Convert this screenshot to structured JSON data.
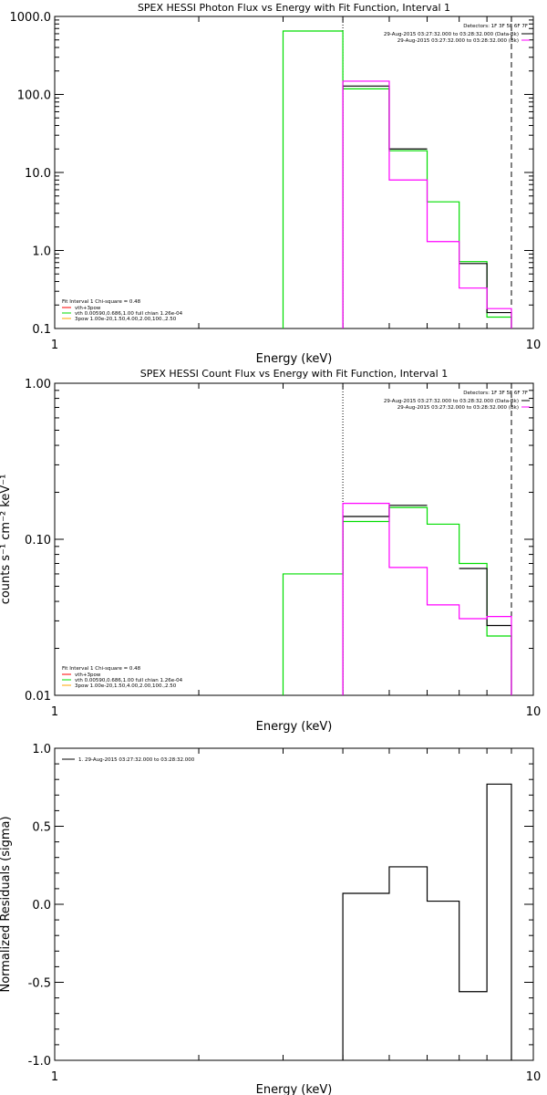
{
  "chart_data": [
    {
      "type": "line",
      "title": "SPEX HESSI Photon Flux vs Energy with Fit Function, Interval 1",
      "xlabel": "Energy (keV)",
      "ylabel": "",
      "xscale": "log",
      "yscale": "log",
      "xlim": [
        1,
        10
      ],
      "ylim": [
        0.1,
        1000
      ],
      "x_ticks": [
        {
          "v": 1,
          "label": "1"
        },
        {
          "v": 10,
          "label": "10"
        }
      ],
      "y_ticks": [
        {
          "v": 1000,
          "label": "1000.0"
        },
        {
          "v": 100,
          "label": "100.0"
        },
        {
          "v": 10,
          "label": "10.0"
        },
        {
          "v": 1,
          "label": "1.0"
        },
        {
          "v": 0.1,
          "label": "0.1"
        }
      ],
      "vlines": [
        {
          "x": 4.0,
          "style": "dotted"
        },
        {
          "x": 9.0,
          "style": "dashed"
        }
      ],
      "legend_right": {
        "header": "Detectors: 1F 3F 5F 6F 7F",
        "entries": [
          {
            "label": "29-Aug-2015 03:27:32.000 to 03:28:32.000 (Data-Bk)",
            "color": "#000000"
          },
          {
            "label": "29-Aug-2015 03:27:32.000 to 03:28:32.000 (Bk)",
            "color": "#ff00ff"
          }
        ]
      },
      "legend_left": {
        "header": "Fit Interval 1   Chi-square = 0.48",
        "entries": [
          {
            "label": "vth+3pow",
            "color": "#ff0000"
          },
          {
            "label": "vth 0.00590,0.686,1.00  full chian 1.26e-04",
            "color": "#00dd00"
          },
          {
            "label": "3pow 1.00e-20,1.50,4.00,2.00,100.,2.50",
            "color": "#ffa500"
          }
        ]
      },
      "series": [
        {
          "color": "#00dd00",
          "bins": [
            [
              3.0,
              4.0,
              650
            ],
            [
              4.0,
              5.0,
              118
            ],
            [
              5.0,
              6.0,
              19
            ],
            [
              6.0,
              7.0,
              4.2
            ],
            [
              7.0,
              8.0,
              0.72
            ],
            [
              8.0,
              9.0,
              0.14
            ]
          ]
        },
        {
          "color": "#000000",
          "bins": [
            [
              4.0,
              5.0,
              128
            ],
            [
              5.0,
              6.0,
              20
            ],
            [
              6.0,
              7.0,
              0
            ],
            [
              7.0,
              8.0,
              0.68
            ],
            [
              8.0,
              9.0,
              0.16
            ]
          ]
        },
        {
          "color": "#ff00ff",
          "bins": [
            [
              4.0,
              5.0,
              148
            ],
            [
              5.0,
              6.0,
              8
            ],
            [
              6.0,
              7.0,
              1.3
            ],
            [
              7.0,
              8.0,
              0.33
            ],
            [
              8.0,
              9.0,
              0.18
            ]
          ]
        }
      ]
    },
    {
      "type": "line",
      "title": "SPEX HESSI Count Flux vs Energy with Fit Function, Interval 1",
      "xlabel": "Energy (keV)",
      "ylabel": "counts s⁻¹ cm⁻² keV⁻¹",
      "xscale": "log",
      "yscale": "log",
      "xlim": [
        1,
        10
      ],
      "ylim": [
        0.01,
        1.0
      ],
      "x_ticks": [
        {
          "v": 1,
          "label": "1"
        },
        {
          "v": 10,
          "label": "10"
        }
      ],
      "y_ticks": [
        {
          "v": 1.0,
          "label": "1.00"
        },
        {
          "v": 0.1,
          "label": "0.10"
        },
        {
          "v": 0.01,
          "label": "0.01"
        }
      ],
      "vlines": [
        {
          "x": 4.0,
          "style": "dotted"
        },
        {
          "x": 9.0,
          "style": "dashed"
        }
      ],
      "legend_right": {
        "header": "Detectors: 1F 3F 5F 6F 7F",
        "entries": [
          {
            "label": "29-Aug-2015 03:27:32.000 to 03:28:32.000 (Data-Bk)",
            "color": "#000000"
          },
          {
            "label": "29-Aug-2015 03:27:32.000 to 03:28:32.000 (Bk)",
            "color": "#ff00ff"
          }
        ]
      },
      "legend_left": {
        "header": "Fit Interval 1   Chi-square = 0.48",
        "entries": [
          {
            "label": "vth+3pow",
            "color": "#ff0000"
          },
          {
            "label": "vth 0.00590,0.686,1.00  full chian 1.26e-04",
            "color": "#00dd00"
          },
          {
            "label": "3pow 1.00e-20,1.50,4.00,2.00,100.,2.50",
            "color": "#ffa500"
          }
        ]
      },
      "series": [
        {
          "color": "#00dd00",
          "bins": [
            [
              3.0,
              4.0,
              0.06
            ],
            [
              4.0,
              5.0,
              0.13
            ],
            [
              5.0,
              6.0,
              0.16
            ],
            [
              6.0,
              7.0,
              0.125
            ],
            [
              7.0,
              8.0,
              0.07
            ],
            [
              8.0,
              9.0,
              0.024
            ]
          ]
        },
        {
          "color": "#000000",
          "bins": [
            [
              4.0,
              5.0,
              0.14
            ],
            [
              5.0,
              6.0,
              0.165
            ],
            [
              6.0,
              7.0,
              0
            ],
            [
              7.0,
              8.0,
              0.065
            ],
            [
              8.0,
              9.0,
              0.028
            ]
          ]
        },
        {
          "color": "#ff00ff",
          "bins": [
            [
              4.0,
              5.0,
              0.17
            ],
            [
              5.0,
              6.0,
              0.066
            ],
            [
              6.0,
              7.0,
              0.038
            ],
            [
              7.0,
              8.0,
              0.031
            ],
            [
              8.0,
              9.0,
              0.032
            ]
          ]
        }
      ]
    },
    {
      "type": "line",
      "title": "",
      "xlabel": "Energy (keV)",
      "ylabel": "Normalized Residuals (sigma)",
      "xscale": "log",
      "yscale": "linear",
      "xlim": [
        1,
        10
      ],
      "ylim": [
        -1.0,
        1.0
      ],
      "x_ticks": [
        {
          "v": 1,
          "label": "1"
        },
        {
          "v": 10,
          "label": "10"
        }
      ],
      "y_ticks": [
        {
          "v": 1.0,
          "label": "1.0"
        },
        {
          "v": 0.5,
          "label": "0.5"
        },
        {
          "v": 0.0,
          "label": "0.0"
        },
        {
          "v": -0.5,
          "label": "-0.5"
        },
        {
          "v": -1.0,
          "label": "-1.0"
        }
      ],
      "vlines": [],
      "legend_right": {
        "header": "",
        "entries": []
      },
      "legend_left": {
        "header": "",
        "entries": []
      },
      "legend_top": {
        "entries": [
          {
            "label": "1. 29-Aug-2015 03:27:32.000 to 03:28:32.000",
            "color": "#000000"
          }
        ]
      },
      "series": [
        {
          "color": "#000000",
          "bins": [
            [
              4.0,
              5.0,
              0.07
            ],
            [
              5.0,
              6.0,
              0.24
            ],
            [
              6.0,
              7.0,
              0.02
            ],
            [
              7.0,
              8.0,
              -0.56
            ],
            [
              8.0,
              9.0,
              0.77
            ]
          ]
        }
      ]
    }
  ]
}
